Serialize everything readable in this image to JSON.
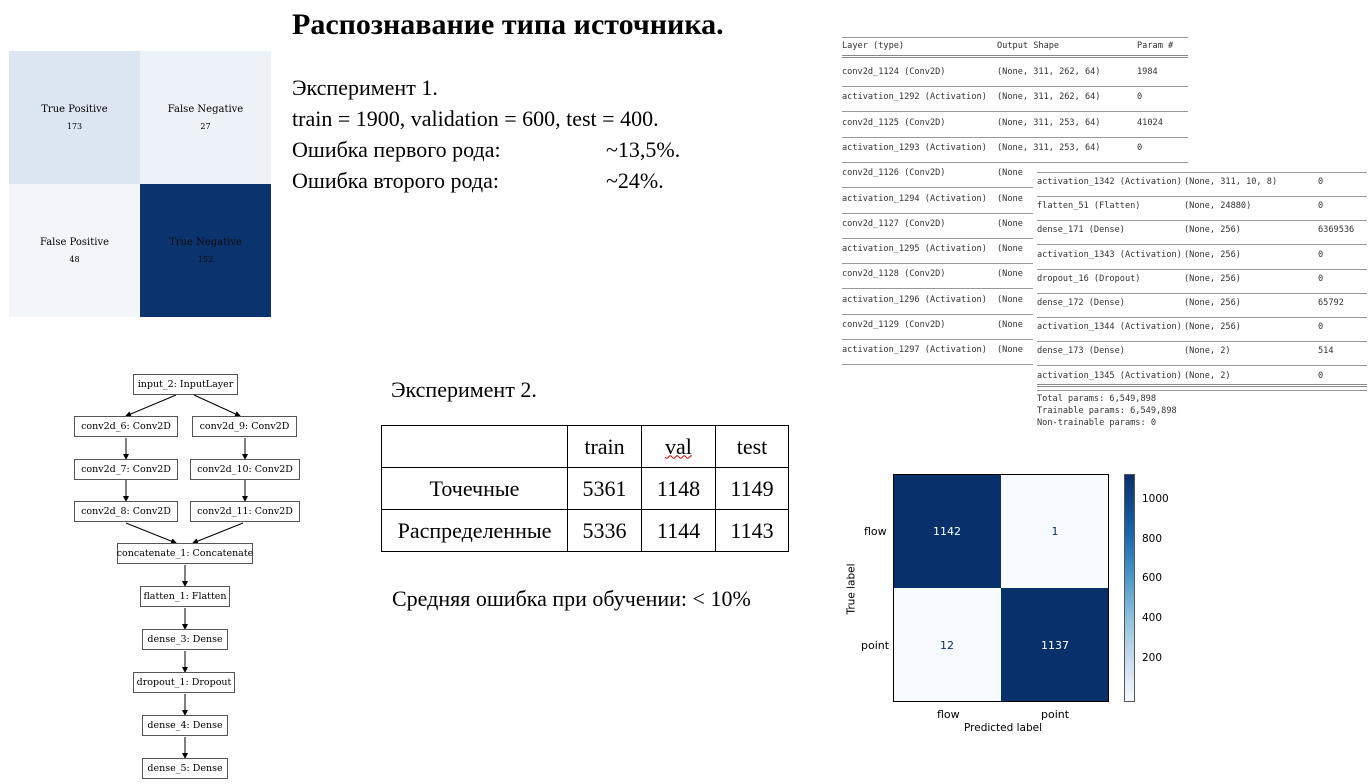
{
  "title": "Распознавание типа источника.",
  "experiment1": {
    "heading": "Эксперимент 1.",
    "split": "train = 1900, validation = 600, test = 400.",
    "error1_label": "Ошибка первого рода:",
    "error1_value": "~13,5%.",
    "error2_label": "Ошибка второго рода:",
    "error2_value": "~24%.",
    "matrix": {
      "tp_label": "True Positive",
      "tp_value": "173",
      "fn_label": "False Negative",
      "fn_value": "27",
      "fp_label": "False Positive",
      "fp_value": "48",
      "tn_label": "True Negative",
      "tn_value": "152",
      "colors": {
        "tp": "#dce6f2",
        "fn": "#edf2f9",
        "fp": "#f2f6fb",
        "tn": "#0b336d"
      }
    }
  },
  "model_summary_1": {
    "header": [
      "Layer (type)",
      "Output Shape",
      "Param #"
    ],
    "rows": [
      [
        "conv2d_1124 (Conv2D)",
        "(None, 311, 262, 64)",
        "1984"
      ],
      [
        "activation_1292 (Activation)",
        "(None, 311, 262, 64)",
        "0"
      ],
      [
        "conv2d_1125 (Conv2D)",
        "(None, 311, 253, 64)",
        "41024"
      ],
      [
        "activation_1293 (Activation)",
        "(None, 311, 253, 64)",
        "0"
      ],
      [
        "conv2d_1126 (Conv2D)",
        "(None",
        ""
      ],
      [
        "activation_1294 (Activation)",
        "(None",
        ""
      ],
      [
        "conv2d_1127 (Conv2D)",
        "(None",
        ""
      ],
      [
        "activation_1295 (Activation)",
        "(None",
        ""
      ],
      [
        "conv2d_1128 (Conv2D)",
        "(None",
        ""
      ],
      [
        "activation_1296 (Activation)",
        "(None",
        ""
      ],
      [
        "conv2d_1129 (Conv2D)",
        "(None",
        ""
      ],
      [
        "activation_1297 (Activation)",
        "(None",
        ""
      ]
    ]
  },
  "model_summary_2": {
    "rows": [
      [
        "activation_1342 (Activation)",
        "(None, 311, 10, 8)",
        "0"
      ],
      [
        "flatten_51 (Flatten)",
        "(None, 24880)",
        "0"
      ],
      [
        "dense_171 (Dense)",
        "(None, 256)",
        "6369536"
      ],
      [
        "activation_1343 (Activation)",
        "(None, 256)",
        "0"
      ],
      [
        "dropout_16 (Dropout)",
        "(None, 256)",
        "0"
      ],
      [
        "dense_172 (Dense)",
        "(None, 256)",
        "65792"
      ],
      [
        "activation_1344 (Activation)",
        "(None, 256)",
        "0"
      ],
      [
        "dense_173 (Dense)",
        "(None, 2)",
        "514"
      ],
      [
        "activation_1345 (Activation)",
        "(None, 2)",
        "0"
      ]
    ],
    "total": "Total params: 6,549,898",
    "trainable": "Trainable params: 6,549,898",
    "non_trainable": "Non-trainable params: 0"
  },
  "network_graph": {
    "nodes": {
      "input": "input_2: InputLayer",
      "c6": "conv2d_6: Conv2D",
      "c9": "conv2d_9: Conv2D",
      "c7": "conv2d_7: Conv2D",
      "c10": "conv2d_10: Conv2D",
      "c8": "conv2d_8: Conv2D",
      "c11": "conv2d_11: Conv2D",
      "concat": "concatenate_1: Concatenate",
      "flatten": "flatten_1: Flatten",
      "dense3": "dense_3: Dense",
      "dropout": "dropout_1: Dropout",
      "dense4": "dense_4: Dense",
      "dense5": "dense_5: Dense"
    }
  },
  "experiment2": {
    "heading": "Эксперимент 2.",
    "table": {
      "headers": [
        "",
        "train",
        "val",
        "test"
      ],
      "rows": [
        [
          "Точечные",
          "5361",
          "1148",
          "1149"
        ],
        [
          "Распределенные",
          "5336",
          "1144",
          "1143"
        ]
      ]
    },
    "avg_error": "Средняя ошибка при обучении:  < 10%"
  },
  "confusion_matrix_2": {
    "cells": [
      [
        "1142",
        "1"
      ],
      [
        "12",
        "1137"
      ]
    ],
    "row_labels": [
      "flow",
      "point"
    ],
    "col_labels": [
      "flow",
      "point"
    ],
    "xlabel": "Predicted label",
    "ylabel": "True label",
    "colorbar_ticks": [
      "1000",
      "800",
      "600",
      "400",
      "200"
    ],
    "colors": {
      "high": "#08306b",
      "low": "#f7fbff"
    }
  }
}
